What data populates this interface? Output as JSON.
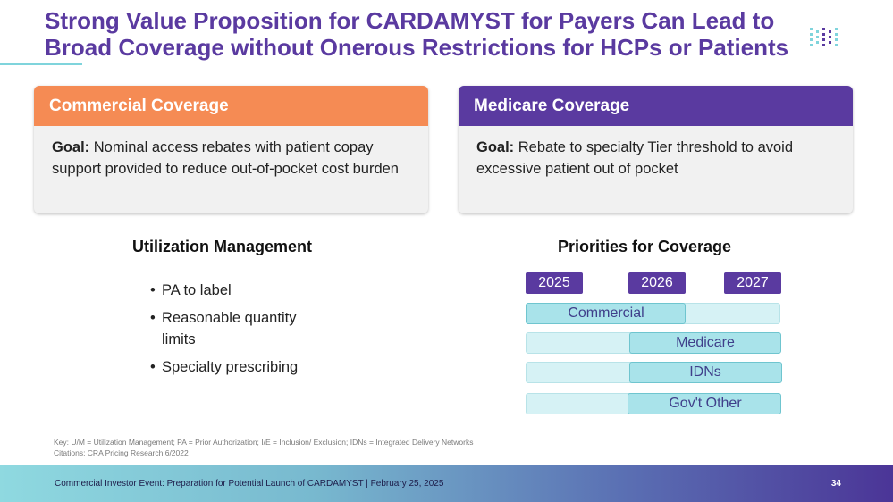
{
  "header": {
    "title_line1": "Strong Value Proposition for CARDAMYST for Payers Can Lead to",
    "title_line2": "Broad Coverage without Onerous Restrictions for HCPs or Patients"
  },
  "cards": {
    "commercial": {
      "heading": "Commercial Coverage",
      "goal_label": "Goal:",
      "goal_text": " Nominal access rebates with patient copay support provided to reduce out-of-pocket cost burden"
    },
    "medicare": {
      "heading": "Medicare Coverage",
      "goal_label": "Goal:",
      "goal_text": " Rebate to specialty Tier threshold to avoid excessive patient out of pocket"
    }
  },
  "utilization": {
    "title": "Utilization Management",
    "bullets": [
      "PA to label",
      "Reasonable quantity limits",
      "Specialty prescribing"
    ]
  },
  "priorities": {
    "title": "Priorities for Coverage",
    "years": [
      "2025",
      "2026",
      "2027"
    ],
    "bars": [
      {
        "label": "Commercial",
        "start_year": 2025
      },
      {
        "label": "Medicare",
        "start_year": 2026
      },
      {
        "label": "IDNs",
        "start_year": 2026
      },
      {
        "label": "Gov't Other",
        "start_year": 2026
      }
    ]
  },
  "footnotes": {
    "key": "Key: U/M = Utilization Management; PA = Prior Authorization;  I/E = Inclusion/ Exclusion; IDNs = Integrated Delivery Networks",
    "citation": "Citations: CRA Pricing Research 6/2022"
  },
  "footer": {
    "text": "Commercial Investor Event: Preparation for Potential Launch of CARDAMYST | February 25, 2025",
    "page_number": "34"
  },
  "colors": {
    "title": "#5a3aa0",
    "commercial_header": "#f58b54",
    "medicare_header": "#5a3aa0",
    "bar_fill": "#a9e3ea",
    "bar_track": "#d6f2f5"
  }
}
